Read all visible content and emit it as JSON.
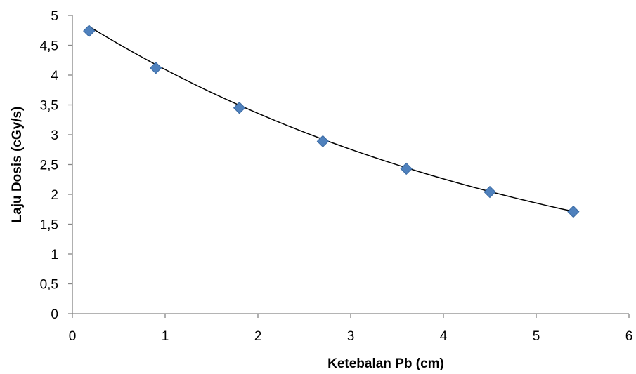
{
  "chart_data": {
    "type": "scatter",
    "title": "",
    "xlabel": "Ketebalan Pb (cm)",
    "ylabel": "Laju Dosis (cGy/s)",
    "xlim": [
      0,
      6
    ],
    "ylim": [
      0,
      5
    ],
    "x_ticks": [
      "0",
      "1",
      "2",
      "3",
      "4",
      "5",
      "6"
    ],
    "y_ticks": [
      "0",
      "0,5",
      "1",
      "1,5",
      "2",
      "2,5",
      "3",
      "3,5",
      "4",
      "4,5",
      "5"
    ],
    "x_tick_values": [
      0,
      1,
      2,
      3,
      4,
      5,
      6
    ],
    "y_tick_values": [
      0,
      0.5,
      1,
      1.5,
      2,
      2.5,
      3,
      3.5,
      4,
      4.5,
      5
    ],
    "grid": false,
    "legend": "none",
    "series": [
      {
        "x": [
          0.18,
          0.9,
          1.8,
          2.7,
          3.6,
          4.5,
          5.4
        ],
        "y": [
          4.74,
          4.12,
          3.45,
          2.89,
          2.43,
          2.04,
          1.71
        ],
        "marker": "diamond",
        "color": "#4F81BD"
      }
    ],
    "trendline": {
      "type": "exponential",
      "a": 4.99,
      "b": -0.198,
      "x_range": [
        0.18,
        5.4
      ],
      "color": "#000000"
    }
  }
}
